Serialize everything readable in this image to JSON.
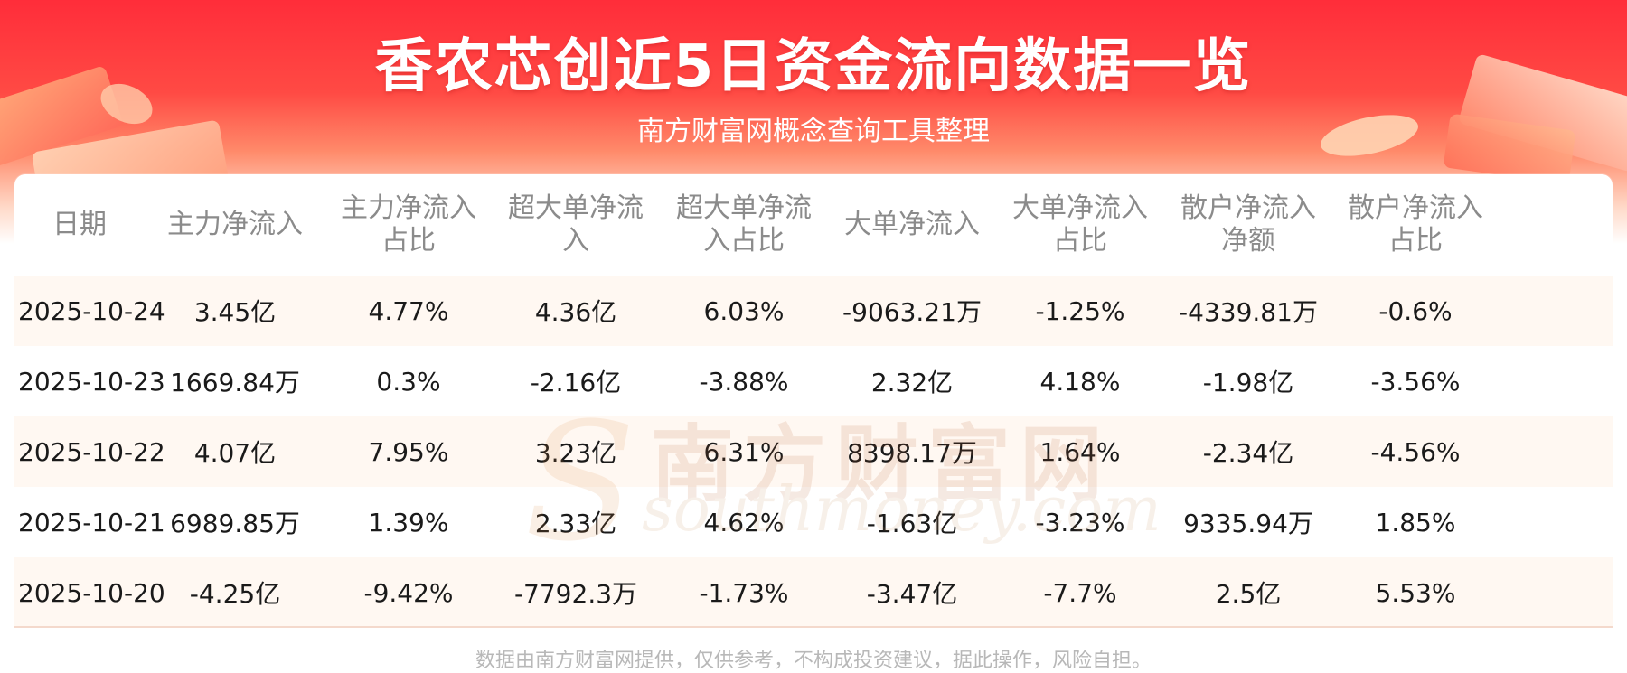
{
  "header": {
    "title": "香农芯创近5日资金流向数据一览",
    "subtitle": "南方财富网概念查询工具整理"
  },
  "table": {
    "columns": [
      "日期",
      "主力净流入",
      "主力净流入\n占比",
      "超大单净流\n入",
      "超大单净流\n入占比",
      "大单净流入",
      "大单净流入\n占比",
      "散户净流入\n净额",
      "散户净流入\n占比"
    ],
    "rows": [
      [
        "2025-10-24",
        "3.45亿",
        "4.77%",
        "4.36亿",
        "6.03%",
        "-9063.21万",
        "-1.25%",
        "-4339.81万",
        "-0.6%"
      ],
      [
        "2025-10-23",
        "1669.84万",
        "0.3%",
        "-2.16亿",
        "-3.88%",
        "2.32亿",
        "4.18%",
        "-1.98亿",
        "-3.56%"
      ],
      [
        "2025-10-22",
        "4.07亿",
        "7.95%",
        "3.23亿",
        "6.31%",
        "8398.17万",
        "1.64%",
        "-2.34亿",
        "-4.56%"
      ],
      [
        "2025-10-21",
        "6989.85万",
        "1.39%",
        "2.33亿",
        "4.62%",
        "-1.63亿",
        "-3.23%",
        "9335.94万",
        "1.85%"
      ],
      [
        "2025-10-20",
        "-4.25亿",
        "-9.42%",
        "-7792.3万",
        "-1.73%",
        "-3.47亿",
        "-7.7%",
        "2.5亿",
        "5.53%"
      ]
    ]
  },
  "watermark": {
    "cn": "南方财富网",
    "en": "southmoney.com"
  },
  "footer": {
    "disclaimer": "数据由南方财富网提供，仅供参考，不构成投资建议，据此操作，风险自担。"
  },
  "colors": {
    "banner_red": "#ff2d3a",
    "row_stripe": "#fff8f2",
    "header_text": "#8b8b8b"
  }
}
